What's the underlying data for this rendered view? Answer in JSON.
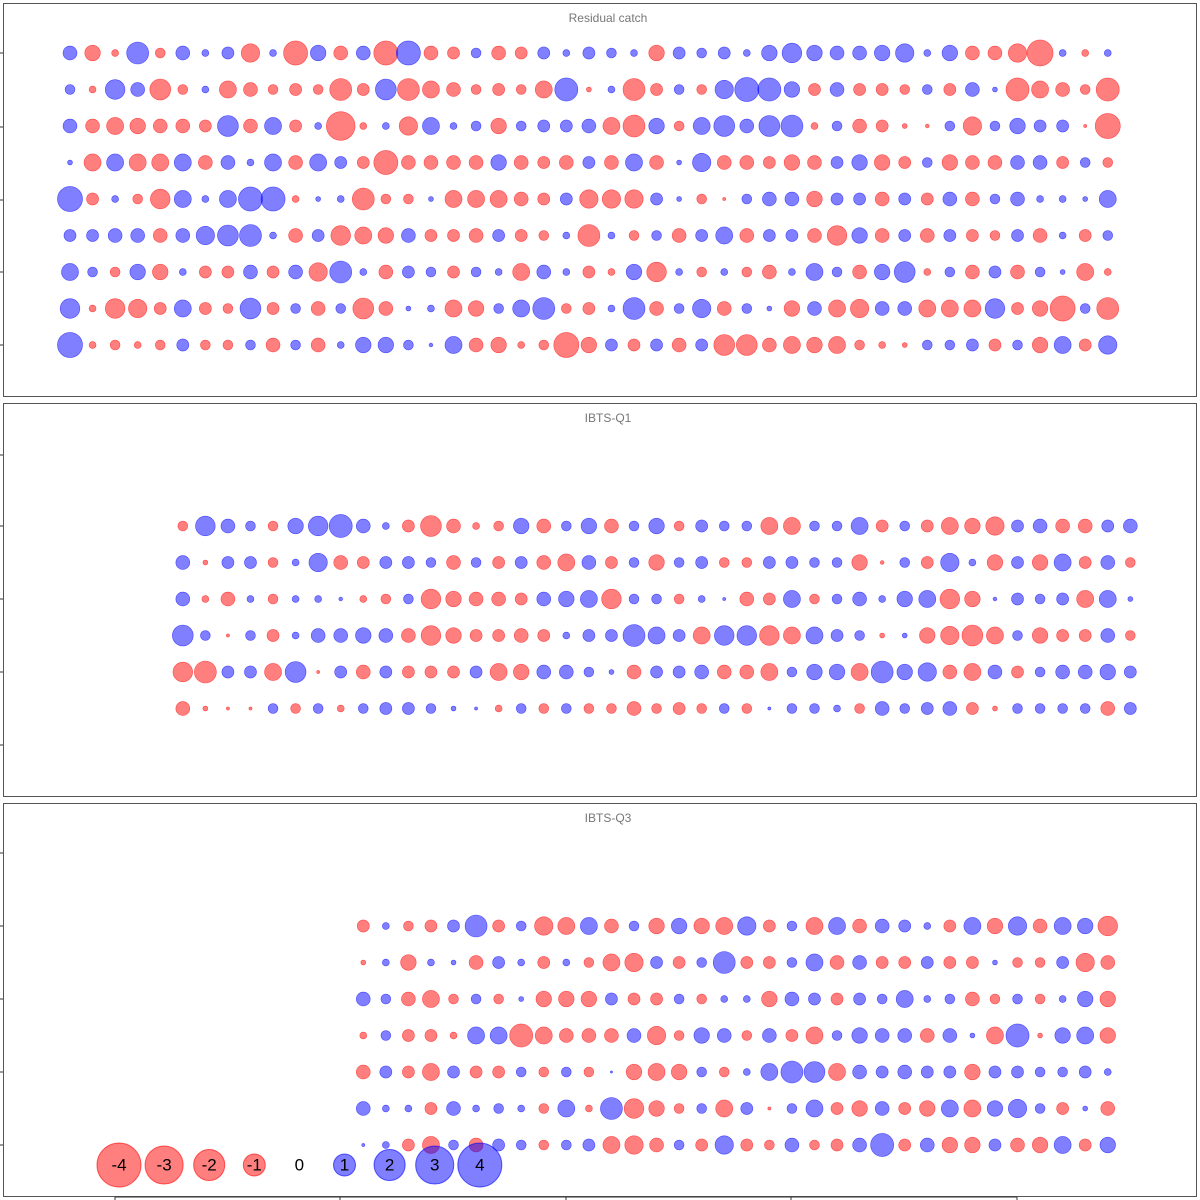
{
  "chart_data": [
    {
      "type": "bubble",
      "title": "Residual catch",
      "positive_color": "#0000ff",
      "negative_color": "#ff0000",
      "categories": [
        null,
        null,
        null,
        null,
        null,
        null,
        null,
        null,
        null,
        null,
        null,
        null,
        null,
        null,
        null,
        null,
        null,
        null,
        null,
        null,
        null,
        null,
        null,
        null,
        null,
        null,
        null,
        null,
        null,
        null,
        null,
        null,
        null,
        null,
        null,
        null,
        null,
        null,
        null,
        null,
        null,
        null,
        null,
        null,
        null,
        null,
        null,
        null
      ],
      "values": [
        [
          0.4,
          -0.5,
          -0.1,
          1.0,
          -0.2,
          0.4,
          0.1,
          0.3,
          -0.7,
          0.1,
          -1.2,
          0.5,
          -0.4,
          0.4,
          -1.2,
          1.2,
          -0.4,
          -0.3,
          0.2,
          -0.4,
          -0.3,
          0.3,
          0.1,
          0.3,
          0.2,
          0.1,
          -0.5,
          0.3,
          0.2,
          0.3,
          0.1,
          0.5,
          0.8,
          0.5,
          0.4,
          0.4,
          0.5,
          0.7,
          0.1,
          0.5,
          -0.4,
          -0.4,
          -0.7,
          -1.4,
          0.1,
          -0.1,
          0.1,
          null
        ],
        [
          0.2,
          -0.1,
          0.8,
          0.4,
          -0.9,
          -0.2,
          0.1,
          -0.6,
          -0.4,
          -0.2,
          -0.3,
          -0.2,
          -1.0,
          -0.3,
          0.9,
          -1.0,
          -0.6,
          -0.4,
          -0.2,
          -0.3,
          -0.2,
          -0.6,
          1.1,
          -0.05,
          0.1,
          -1.0,
          -0.3,
          0.2,
          -0.2,
          0.7,
          1.2,
          1.1,
          0.5,
          -0.3,
          0.4,
          -0.3,
          -0.3,
          -0.2,
          0.2,
          -0.3,
          0.4,
          0.05,
          -1.1,
          -0.6,
          -0.4,
          -0.2,
          -1.1,
          null
        ],
        [
          0.4,
          -0.4,
          -0.6,
          -0.5,
          -0.4,
          -0.4,
          -0.3,
          0.9,
          -0.4,
          0.6,
          -0.3,
          0.1,
          -1.7,
          -0.1,
          0.1,
          -0.7,
          0.6,
          0.1,
          0.2,
          -0.5,
          0.2,
          0.3,
          0.3,
          0.4,
          -0.6,
          -1.0,
          0.5,
          -0.2,
          0.6,
          0.9,
          0.4,
          0.9,
          1.0,
          -0.1,
          0.2,
          -0.4,
          -0.3,
          -0.05,
          -0.03,
          0.2,
          -0.7,
          0.2,
          0.5,
          0.3,
          0.3,
          -0.02,
          -1.3,
          null
        ],
        [
          0.05,
          -0.6,
          0.6,
          -0.6,
          -0.6,
          0.6,
          -0.4,
          0.4,
          0.1,
          0.6,
          -0.4,
          0.6,
          0.3,
          -0.3,
          -1.2,
          -0.4,
          -0.4,
          -0.4,
          -0.4,
          0.5,
          -0.4,
          -0.3,
          -0.4,
          0.3,
          -0.4,
          0.6,
          -0.4,
          0.05,
          0.7,
          -0.4,
          -0.4,
          -0.3,
          -0.5,
          -0.4,
          0.3,
          0.5,
          -0.5,
          -0.3,
          0.2,
          -0.5,
          -0.4,
          -0.4,
          0.4,
          0.4,
          -0.3,
          0.2,
          -0.2,
          null
        ],
        [
          1.3,
          -0.3,
          0.1,
          -0.2,
          -0.8,
          0.6,
          0.1,
          0.6,
          1.2,
          1.2,
          -0.1,
          0.05,
          0.1,
          -1.0,
          -0.2,
          -0.2,
          0.05,
          -0.6,
          -0.6,
          -0.6,
          -0.4,
          -0.3,
          0.3,
          -0.7,
          -0.7,
          -0.7,
          0.3,
          0.05,
          -0.2,
          -0.02,
          0.2,
          0.4,
          0.4,
          -0.5,
          0.3,
          0.3,
          -0.4,
          0.3,
          -0.3,
          0.4,
          -0.4,
          0.2,
          0.4,
          0.1,
          0.1,
          0.05,
          0.6,
          null
        ],
        [
          0.3,
          0.3,
          0.4,
          0.4,
          -0.4,
          0.4,
          0.7,
          0.9,
          1.0,
          0.1,
          -0.4,
          0.3,
          -0.8,
          -0.6,
          -0.5,
          0.4,
          -0.3,
          -0.3,
          -0.4,
          0.3,
          -0.3,
          -0.2,
          0.1,
          -1.0,
          0.1,
          -0.2,
          0.2,
          -0.4,
          0.3,
          0.6,
          -0.4,
          0.3,
          0.3,
          -0.4,
          -0.8,
          0.5,
          -0.4,
          0.3,
          -0.4,
          0.3,
          -0.3,
          -0.2,
          0.3,
          -0.4,
          0.1,
          -0.3,
          0.2,
          null
        ],
        [
          0.6,
          0.2,
          -0.2,
          0.5,
          -0.5,
          0.1,
          -0.3,
          -0.3,
          0.4,
          -0.3,
          0.4,
          -0.7,
          1.0,
          0.1,
          -0.4,
          0.3,
          0.2,
          -0.3,
          0.2,
          0.1,
          -0.6,
          0.4,
          0.1,
          -0.3,
          -0.1,
          0.5,
          -0.8,
          0.1,
          -0.2,
          0.1,
          -0.2,
          -0.4,
          0.1,
          0.6,
          0.2,
          -0.4,
          0.5,
          0.9,
          -0.1,
          0.2,
          -0.4,
          0.3,
          -0.4,
          0.2,
          0.05,
          -0.6,
          -0.1,
          null
        ],
        [
          0.8,
          -0.1,
          -0.8,
          -0.7,
          -0.3,
          0.6,
          -0.3,
          -0.2,
          0.9,
          -0.3,
          0.2,
          -0.4,
          0.2,
          -0.9,
          -0.4,
          0.05,
          0.1,
          -0.6,
          -0.5,
          0.2,
          0.6,
          1.0,
          -0.2,
          -0.3,
          0.1,
          1.0,
          -0.4,
          0.2,
          0.7,
          -0.4,
          0.2,
          0.05,
          -0.5,
          0.4,
          -0.6,
          -0.7,
          0.4,
          0.4,
          -0.6,
          -0.6,
          -0.6,
          0.8,
          -0.3,
          -0.5,
          -1.3,
          0.2,
          -1.0,
          null
        ],
        [
          1.3,
          -0.1,
          -0.2,
          -0.1,
          -0.2,
          0.3,
          -0.2,
          -0.2,
          0.2,
          -0.4,
          0.2,
          -0.4,
          0.1,
          0.5,
          0.5,
          0.2,
          0.03,
          0.6,
          -0.4,
          -0.5,
          -0.1,
          -0.2,
          -1.3,
          -0.5,
          0.3,
          -0.3,
          0.3,
          -0.4,
          0.3,
          -0.9,
          -0.9,
          -0.4,
          -0.6,
          -0.5,
          -0.6,
          -0.2,
          -0.1,
          -0.05,
          0.2,
          0.2,
          0.3,
          -0.3,
          0.2,
          -0.5,
          0.6,
          -0.3,
          0.7,
          null
        ]
      ]
    },
    {
      "type": "bubble",
      "title": "IBTS-Q1",
      "positive_color": "#0000ff",
      "negative_color": "#ff0000",
      "categories": [
        null,
        null,
        null,
        null,
        null,
        null,
        null,
        null,
        null,
        null,
        null,
        null,
        null,
        null,
        null,
        null,
        null,
        null,
        null,
        null,
        null,
        null,
        null,
        null,
        null,
        null,
        null,
        null,
        null,
        null,
        null,
        null,
        null,
        null,
        null,
        null,
        null,
        null,
        null,
        null,
        null,
        null,
        null,
        null,
        null,
        null,
        null,
        null
      ],
      "values": [
        [
          null,
          null,
          null,
          null,
          null,
          -0.2,
          0.8,
          0.4,
          0.2,
          -0.2,
          0.5,
          0.8,
          1.1,
          0.4,
          0.1,
          -0.3,
          -0.9,
          -0.4,
          -0.1,
          -0.2,
          0.5,
          -0.4,
          0.2,
          0.5,
          -0.4,
          0.2,
          0.5,
          -0.2,
          0.3,
          0.2,
          0.2,
          -0.6,
          -0.6,
          0.2,
          0.2,
          0.6,
          -0.3,
          0.2,
          -0.3,
          -0.6,
          -0.5,
          -0.7,
          0.3,
          0.4,
          -0.4,
          -0.4,
          0.3,
          0.4
        ],
        [
          null,
          null,
          null,
          null,
          null,
          0.4,
          -0.05,
          0.3,
          0.3,
          -0.2,
          0.1,
          0.7,
          -0.4,
          -0.3,
          0.3,
          0.3,
          0.2,
          -0.4,
          0.2,
          -0.3,
          0.3,
          -0.4,
          -0.6,
          0.4,
          -0.3,
          0.2,
          -0.5,
          0.2,
          0.3,
          -0.2,
          -0.2,
          0.3,
          0.3,
          0.2,
          0.2,
          -0.5,
          -0.03,
          0.2,
          -0.3,
          0.7,
          0.1,
          -0.5,
          0.3,
          -0.5,
          0.6,
          -0.3,
          0.4,
          -0.2
        ],
        [
          null,
          null,
          null,
          null,
          null,
          0.4,
          -0.1,
          -0.4,
          0.1,
          -0.2,
          0.1,
          0.1,
          0.03,
          -0.1,
          -0.2,
          0.2,
          -0.8,
          -0.5,
          -0.4,
          -0.4,
          -0.3,
          0.4,
          0.5,
          0.6,
          -0.8,
          0.2,
          0.2,
          -0.2,
          0.1,
          0.02,
          -0.4,
          -0.3,
          0.6,
          -0.2,
          0.2,
          0.4,
          0.1,
          0.5,
          0.6,
          -0.8,
          -0.5,
          0.03,
          0.3,
          0.2,
          0.3,
          -0.6,
          0.6,
          0.05
        ],
        [
          null,
          null,
          null,
          null,
          null,
          0.9,
          0.2,
          -0.02,
          0.2,
          -0.3,
          0.1,
          0.4,
          0.4,
          0.5,
          0.4,
          -0.4,
          -0.8,
          -0.5,
          -0.3,
          -0.3,
          -0.4,
          -0.3,
          0.1,
          0.3,
          0.3,
          1.0,
          0.6,
          0.3,
          -0.6,
          0.8,
          0.8,
          -0.8,
          -0.6,
          0.6,
          0.3,
          0.2,
          -0.05,
          0.05,
          -0.5,
          -0.7,
          -0.9,
          -0.6,
          0.2,
          -0.5,
          -0.3,
          -0.3,
          0.4,
          -0.2
        ],
        [
          null,
          null,
          null,
          null,
          null,
          -0.8,
          -1.0,
          0.3,
          0.3,
          -0.6,
          0.9,
          -0.02,
          0.3,
          -0.4,
          0.3,
          -0.3,
          -0.3,
          -0.3,
          0.3,
          -0.6,
          -0.5,
          0.4,
          0.4,
          0.2,
          0.05,
          -0.4,
          0.3,
          0.3,
          0.4,
          -0.4,
          -0.4,
          -0.6,
          0.2,
          0.5,
          0.5,
          -0.6,
          1.0,
          0.5,
          0.7,
          -0.4,
          -0.6,
          0.4,
          -0.3,
          0.2,
          0.4,
          0.4,
          0.5,
          0.3
        ],
        [
          null,
          null,
          null,
          null,
          null,
          -0.4,
          -0.05,
          -0.02,
          -0.02,
          0.2,
          -0.2,
          0.2,
          -0.1,
          0.2,
          0.3,
          0.3,
          0.2,
          0.05,
          0.02,
          -0.1,
          0.2,
          -0.2,
          0.2,
          -0.2,
          -0.2,
          -0.4,
          -0.2,
          -0.3,
          -0.2,
          0.2,
          -0.2,
          0.02,
          0.2,
          0.2,
          0.1,
          -0.2,
          0.4,
          0.2,
          0.3,
          0.4,
          -0.3,
          -0.05,
          0.2,
          0.2,
          0.2,
          0.2,
          -0.4,
          0.3
        ]
      ]
    },
    {
      "type": "bubble",
      "title": "IBTS-Q3",
      "positive_color": "#0000ff",
      "negative_color": "#ff0000",
      "categories": [
        null,
        null,
        null,
        null,
        null,
        null,
        null,
        null,
        null,
        null,
        null,
        null,
        null,
        null,
        null,
        null,
        null,
        null,
        null,
        null,
        null,
        null,
        null,
        null,
        null,
        null,
        null,
        null,
        null,
        null,
        null,
        null,
        null,
        null,
        null,
        null,
        null,
        null,
        null,
        null,
        null,
        null,
        null,
        null,
        null,
        null,
        null,
        null
      ],
      "values": [
        [
          null,
          null,
          null,
          null,
          null,
          null,
          null,
          null,
          null,
          null,
          null,
          null,
          null,
          -0.3,
          0.1,
          -0.2,
          -0.3,
          0.3,
          1.0,
          -0.3,
          0.2,
          -0.7,
          -0.6,
          0.6,
          -0.4,
          0.2,
          -0.5,
          0.5,
          -0.5,
          -0.6,
          0.7,
          -0.3,
          0.2,
          -0.6,
          0.6,
          -0.4,
          0.4,
          0.3,
          0.1,
          -0.3,
          0.6,
          -0.5,
          0.7,
          -0.4,
          0.6,
          0.5,
          -0.8,
          null
        ],
        [
          null,
          null,
          null,
          null,
          null,
          null,
          null,
          null,
          null,
          null,
          null,
          null,
          null,
          -0.05,
          0.1,
          -0.5,
          0.1,
          0.05,
          -0.4,
          0.3,
          0.1,
          -0.3,
          0.1,
          -0.2,
          -0.6,
          -0.7,
          0.3,
          -0.3,
          0.2,
          1.0,
          -0.3,
          -0.3,
          0.2,
          0.6,
          -0.4,
          0.4,
          -0.3,
          -0.3,
          0.3,
          -0.3,
          -0.3,
          0.05,
          -0.2,
          -0.2,
          0.3,
          -0.7,
          -0.4,
          null
        ],
        [
          null,
          null,
          null,
          null,
          null,
          null,
          null,
          null,
          null,
          null,
          null,
          null,
          null,
          0.4,
          0.2,
          -0.4,
          -0.6,
          -0.2,
          0.2,
          -0.2,
          0.05,
          -0.5,
          -0.5,
          -0.5,
          0.3,
          -0.3,
          -0.3,
          0.2,
          -0.2,
          0.1,
          0.1,
          -0.5,
          0.4,
          0.3,
          -0.3,
          0.3,
          0.2,
          0.6,
          0.1,
          0.2,
          -0.4,
          -0.2,
          0.2,
          -0.2,
          0.1,
          0.5,
          -0.5,
          null
        ],
        [
          null,
          null,
          null,
          null,
          null,
          null,
          null,
          null,
          null,
          null,
          null,
          null,
          null,
          -0.1,
          0.2,
          -0.3,
          -0.3,
          -0.1,
          0.6,
          0.6,
          -1.1,
          -0.6,
          -0.4,
          -0.4,
          -0.4,
          0.4,
          -0.7,
          -0.2,
          0.5,
          0.4,
          -0.2,
          0.4,
          -0.3,
          -0.6,
          0.2,
          0.5,
          0.4,
          0.4,
          -0.4,
          0.4,
          0.05,
          -0.6,
          1.1,
          -0.05,
          0.5,
          0.6,
          -0.5,
          null
        ],
        [
          null,
          null,
          null,
          null,
          null,
          null,
          null,
          null,
          null,
          null,
          null,
          null,
          null,
          -0.4,
          0.3,
          -0.3,
          -0.6,
          0.3,
          -0.3,
          -0.3,
          0.2,
          -0.2,
          0.2,
          -0.2,
          0.01,
          -0.5,
          -0.6,
          -0.5,
          0.2,
          -0.2,
          0.1,
          0.6,
          1.0,
          0.9,
          -0.6,
          0.4,
          0.3,
          0.4,
          0.3,
          0.3,
          -0.5,
          0.3,
          0.3,
          0.2,
          0.2,
          0.3,
          0.1,
          null
        ],
        [
          null,
          null,
          null,
          null,
          null,
          null,
          null,
          null,
          null,
          null,
          null,
          null,
          null,
          0.4,
          0.1,
          0.1,
          -0.3,
          0.4,
          0.1,
          0.2,
          0.1,
          -0.2,
          0.6,
          -0.1,
          1.0,
          -0.8,
          -0.5,
          -0.2,
          0.2,
          -0.6,
          0.3,
          -0.02,
          0.2,
          0.6,
          -0.3,
          -0.5,
          0.4,
          -0.3,
          -0.5,
          0.6,
          -0.6,
          0.5,
          0.7,
          0.2,
          -0.3,
          0.05,
          -0.4,
          null
        ],
        [
          null,
          null,
          null,
          null,
          null,
          null,
          null,
          null,
          null,
          null,
          null,
          null,
          null,
          0.02,
          0.1,
          -0.3,
          -0.6,
          0.2,
          -0.4,
          0.3,
          0.2,
          -0.2,
          0.2,
          0.3,
          -0.6,
          -0.7,
          -0.4,
          0.2,
          -0.3,
          0.7,
          -0.3,
          -0.2,
          0.4,
          -0.2,
          -0.3,
          0.4,
          1.1,
          -0.3,
          0.4,
          -0.5,
          -0.5,
          0.3,
          -0.4,
          -0.5,
          0.6,
          -0.3,
          0.5,
          null
        ]
      ],
      "legend": [
        -4,
        -3,
        -2,
        -1,
        0,
        1,
        2,
        3,
        4
      ]
    }
  ]
}
